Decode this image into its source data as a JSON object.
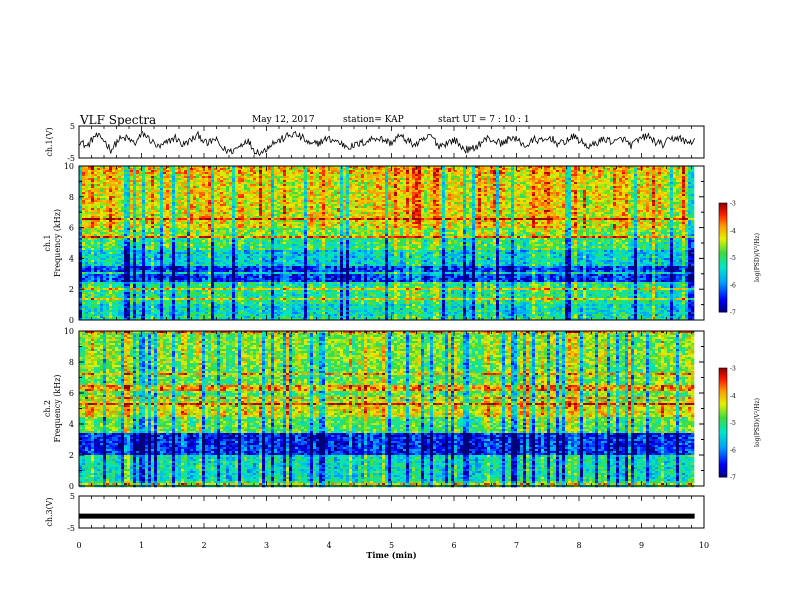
{
  "header": {
    "title": "VLF Spectra",
    "date": "May 12, 2017",
    "station": "station= KAP",
    "start": "start  UT =   7 : 10 : 1"
  },
  "chart_data": [
    {
      "type": "line",
      "panel": "ch1-waveform",
      "ylabel": "ch.1(V)",
      "ylim": [
        -5,
        5
      ],
      "yticks": [
        5,
        -5
      ],
      "x_range_min": [
        0,
        9.85
      ],
      "series": [
        {
          "values": [
            0.5,
            -1.5,
            2.0,
            1.0,
            -2.5,
            0.8,
            1.2,
            -0.5,
            2.8,
            0.4,
            -1.8,
            -0.2,
            1.5,
            -1.0,
            0.6,
            2.2,
            -0.7,
            1.0,
            -2.2,
            -3.0,
            -1.5,
            0.8,
            -2.8,
            -3.2,
            -0.5,
            0.3,
            1.8,
            2.5,
            1.2,
            -1.0,
            -0.2,
            1.0,
            0.5,
            -0.8,
            -1.5,
            -0.6,
            0.2,
            1.4,
            0.8,
            -0.4,
            1.9,
            0.6,
            -0.9,
            0.3,
            2.1,
            -1.2,
            -0.3,
            0.7,
            -2.0,
            -2.6,
            -0.8,
            1.1,
            0.4,
            -0.6,
            1.6,
            0.2,
            -1.3,
            0.9,
            0.1,
            1.4,
            -0.8,
            0.5,
            1.7,
            -0.4,
            -1.6,
            0.3,
            0.9,
            -0.2,
            1.2,
            -1.1,
            0.6,
            2.0,
            0.2,
            -0.9,
            0.8,
            1.5,
            -0.3,
            0.4
          ]
        }
      ]
    },
    {
      "type": "heatmap",
      "panel": "ch1-spectrogram",
      "ylabel": "ch.1\nFrequency (kHz)",
      "ylim": [
        0,
        10
      ],
      "yticks": [
        0,
        2,
        4,
        6,
        8,
        10
      ],
      "colorbar": {
        "label": "log(PSD)(V²/Hz)",
        "range": [
          -7,
          -3
        ],
        "ticks": [
          -3,
          -4,
          -5,
          -6,
          -7
        ]
      },
      "bands": [
        {
          "f": [
            9.5,
            10.0
          ],
          "level": -4.0
        },
        {
          "f": [
            6.0,
            9.5
          ],
          "level": -4.2
        },
        {
          "f": [
            5.3,
            6.0
          ],
          "level": -4.6
        },
        {
          "f": [
            4.5,
            5.3
          ],
          "level": -5.0
        },
        {
          "f": [
            3.5,
            4.5
          ],
          "level": -5.5
        },
        {
          "f": [
            2.5,
            3.5
          ],
          "level": -6.3
        },
        {
          "f": [
            1.0,
            2.5
          ],
          "level": -5.1
        },
        {
          "f": [
            0.3,
            1.0
          ],
          "level": -5.4
        },
        {
          "f": [
            0.0,
            0.3
          ],
          "level": -5.2
        }
      ]
    },
    {
      "type": "heatmap",
      "panel": "ch2-spectrogram",
      "ylabel": "ch.2\nFrequency (kHz)",
      "ylim": [
        0,
        10
      ],
      "yticks": [
        0,
        2,
        4,
        6,
        8,
        10
      ],
      "colorbar": {
        "label": "log(PSD)(V²/Hz)",
        "range": [
          -7,
          -3
        ],
        "ticks": [
          -3,
          -4,
          -5,
          -6,
          -7
        ]
      },
      "bands": [
        {
          "f": [
            8.0,
            10.0
          ],
          "level": -4.6
        },
        {
          "f": [
            5.5,
            8.0
          ],
          "level": -4.7
        },
        {
          "f": [
            4.4,
            5.5
          ],
          "level": -4.2
        },
        {
          "f": [
            3.4,
            4.4
          ],
          "level": -4.8
        },
        {
          "f": [
            2.0,
            3.4
          ],
          "level": -6.4
        },
        {
          "f": [
            0.3,
            2.0
          ],
          "level": -5.3
        },
        {
          "f": [
            0.0,
            0.3
          ],
          "level": -5.0
        }
      ]
    },
    {
      "type": "line",
      "panel": "ch3-waveform",
      "ylabel": "ch.3(V)",
      "ylim": [
        -5,
        5
      ],
      "yticks": [
        5,
        -5
      ],
      "series": [
        {
          "values_constant": -1.3
        }
      ],
      "xlabel": "Time (min)",
      "xlim": [
        0,
        10
      ],
      "xticks": [
        "0",
        "1",
        "2",
        "3",
        "4",
        "5",
        "6",
        "7",
        "8",
        "9",
        "10"
      ]
    }
  ]
}
